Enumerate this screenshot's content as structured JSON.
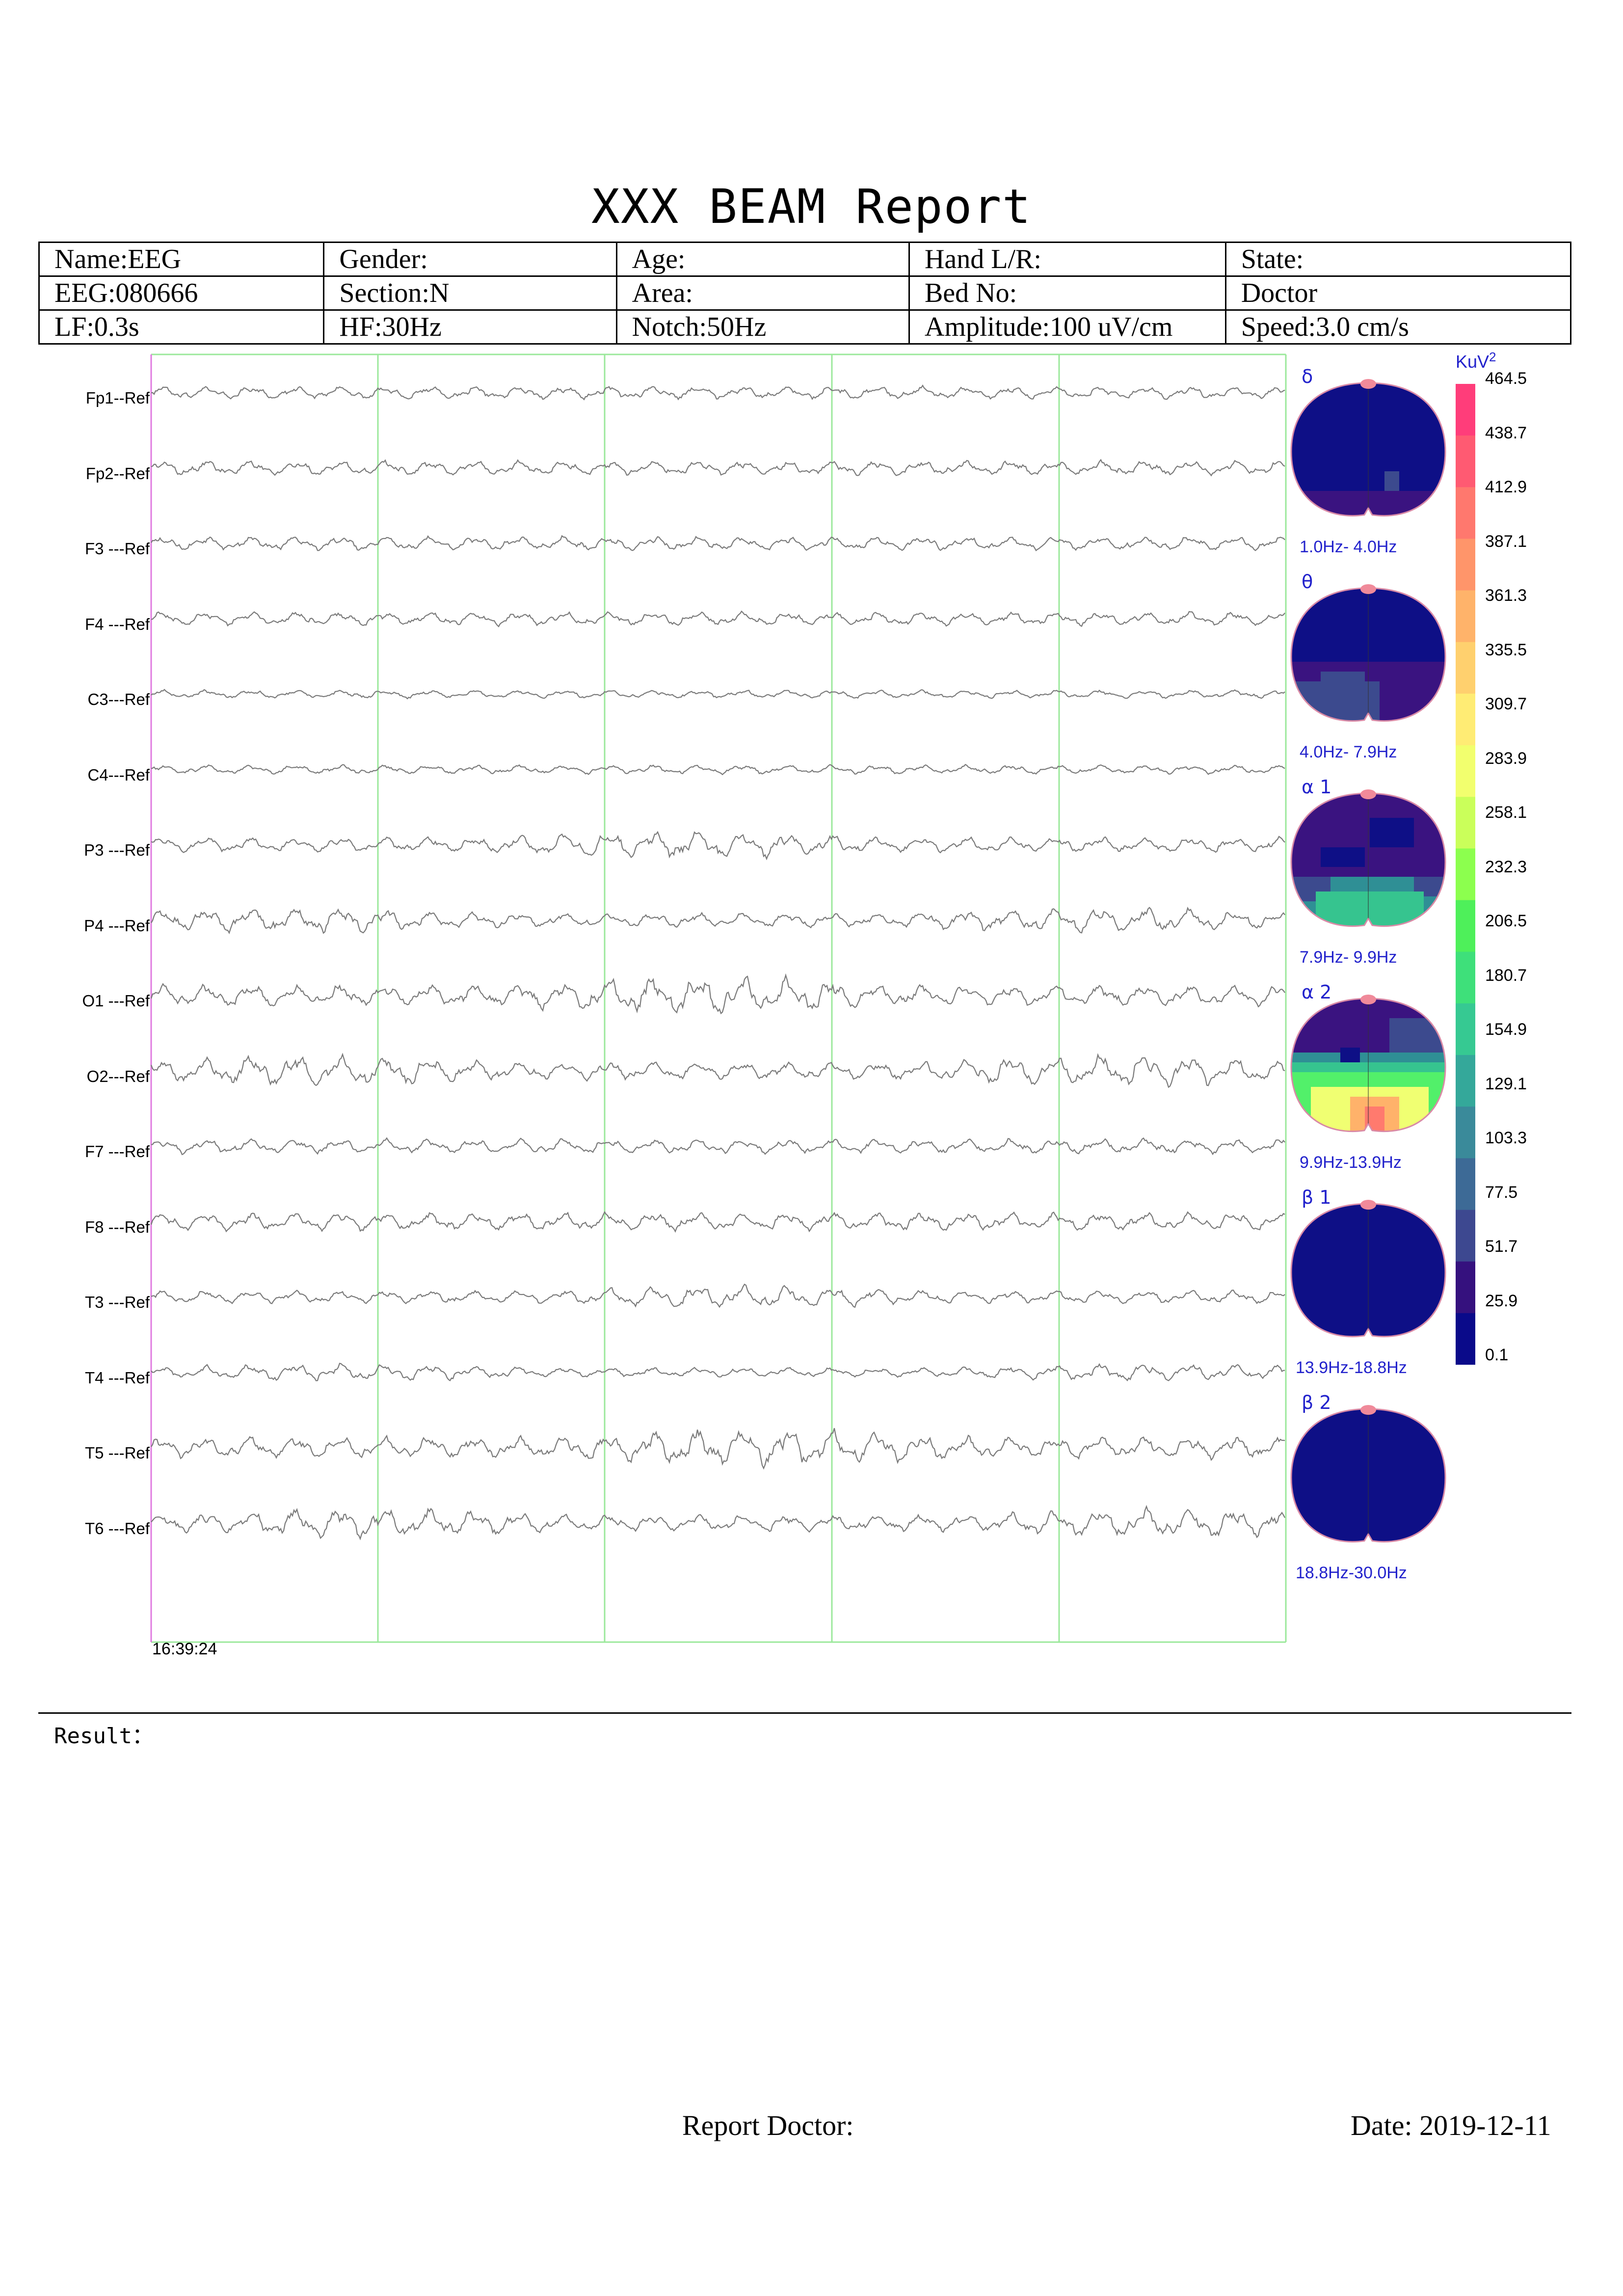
{
  "report": {
    "title": "XXX BEAM Report"
  },
  "info_table": {
    "rows": [
      [
        "Name:EEG",
        "Gender:",
        "Age:",
        "Hand L/R:",
        "State:"
      ],
      [
        "EEG:080666",
        "Section:N",
        "Area:",
        "Bed No:",
        "Doctor"
      ],
      [
        "LF:0.3s",
        "HF:30Hz",
        "Notch:50Hz",
        "Amplitude:100 uV/cm",
        "Speed:3.0 cm/s"
      ]
    ]
  },
  "eeg": {
    "channels": [
      "Fp1--Ref",
      "Fp2--Ref",
      "F3 ---Ref",
      "F4 ---Ref",
      "C3---Ref",
      "C4---Ref",
      "P3 ---Ref",
      "P4 ---Ref",
      "O1 ---Ref",
      "O2---Ref",
      "F7 ---Ref",
      "F8 ---Ref",
      "T3 ---Ref",
      "T4 ---Ref",
      "T5 ---Ref",
      "T6 ---Ref"
    ],
    "start_time": "16:39:24",
    "trace_color": "#7a7a7a",
    "grid_color": "#9be89b",
    "marker_color": "#e07ae0"
  },
  "brain_maps": [
    {
      "band": "δ",
      "range": "1.0Hz- 4.0Hz"
    },
    {
      "band": "θ",
      "range": "4.0Hz- 7.9Hz"
    },
    {
      "band": "α 1",
      "range": "7.9Hz- 9.9Hz"
    },
    {
      "band": "α 2",
      "range": "9.9Hz-13.9Hz"
    },
    {
      "band": "β 1",
      "range": "13.9Hz-18.8Hz"
    },
    {
      "band": "β 2",
      "range": "18.8Hz-30.0Hz"
    }
  ],
  "color_scale": {
    "unit": "KuV",
    "unit_exp": "2",
    "values": [
      "464.5",
      "438.7",
      "412.9",
      "387.1",
      "361.3",
      "335.5",
      "309.7",
      "283.9",
      "258.1",
      "232.3",
      "206.5",
      "180.7",
      "154.9",
      "129.1",
      "103.3",
      "77.5",
      "51.7",
      "25.9",
      "0.1"
    ],
    "colors": [
      "#ff3d7a",
      "#ff5a72",
      "#ff786e",
      "#ff956a",
      "#ffb36a",
      "#ffd06e",
      "#ffec74",
      "#f2ff6e",
      "#caff5a",
      "#8cff4e",
      "#4ef05a",
      "#3ee07a",
      "#36c992",
      "#34a89a",
      "#3a8a9a",
      "#3d6a96",
      "#3d4890",
      "#35117e",
      "#0a0a8a"
    ]
  },
  "result": {
    "label": "Result："
  },
  "footer": {
    "doctor_label": "Report Doctor:",
    "date_label": "Date: 2019-12-11"
  }
}
